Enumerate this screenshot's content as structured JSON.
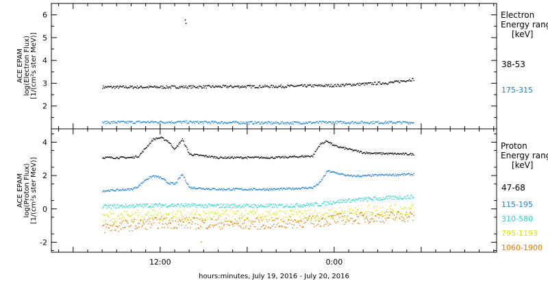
{
  "chart_data": [
    {
      "type": "scatter",
      "panel": "electron",
      "ylabel": [
        "ACE EPAM",
        "log(Electron Flux)",
        "[1/(cm²s ster MeV)]"
      ],
      "ylim": [
        1.0,
        6.5
      ],
      "yticks": [
        2,
        3,
        4,
        5,
        6
      ],
      "legend_title": [
        "Electron",
        "Energy ranges",
        "[keV]"
      ],
      "series": [
        {
          "name": "38-53",
          "color": "#000000",
          "segments": [
            {
              "t": [
                -16,
                -12,
                -8,
                -4,
                0,
                4,
                5.5
              ],
              "y": [
                2.85,
                2.85,
                2.87,
                2.88,
                2.92,
                3.05,
                3.2
              ]
            }
          ],
          "outliers": [
            {
              "t": -10.3,
              "y": 5.8
            },
            {
              "t": -10.25,
              "y": 5.65
            }
          ]
        },
        {
          "name": "175-315",
          "color": "#1c7fd6",
          "segments": [
            {
              "t": [
                -16,
                -12,
                -8,
                -4,
                0,
                4,
                5.5
              ],
              "y": [
                1.3,
                1.32,
                1.3,
                1.28,
                1.3,
                1.3,
                1.3
              ]
            }
          ],
          "outliers": []
        }
      ]
    },
    {
      "type": "scatter",
      "panel": "proton",
      "ylabel": [
        "ACE EPAM",
        "log(Proton Flux)",
        "[1/(cm²s ster MeV)]"
      ],
      "ylim": [
        -2.6,
        4.8
      ],
      "yticks": [
        -2,
        0,
        2,
        4
      ],
      "legend_title": [
        "Proton",
        "Energy ranges",
        "[keV]"
      ],
      "series": [
        {
          "name": "47-68",
          "color": "#000000",
          "segments": [
            {
              "t": [
                -16,
                -14,
                -13.5,
                -13,
                -12.5,
                -12,
                -11.5,
                -11,
                -10.5,
                -10,
                -8,
                -4,
                -1.5,
                -1.0,
                -0.5,
                0,
                1,
                2,
                3,
                5.5
              ],
              "y": [
                3.1,
                3.1,
                3.2,
                3.7,
                4.2,
                4.3,
                4.1,
                3.6,
                4.2,
                3.3,
                3.1,
                3.1,
                3.2,
                3.9,
                4.1,
                3.8,
                3.6,
                3.4,
                3.35,
                3.3
              ]
            }
          ],
          "outliers": []
        },
        {
          "name": "115-195",
          "color": "#1c7fd6",
          "segments": [
            {
              "t": [
                -16,
                -14,
                -13.5,
                -13,
                -12.5,
                -12,
                -11.5,
                -11,
                -10.5,
                -10,
                -8,
                -4,
                -1.5,
                -1.0,
                -0.5,
                0,
                1,
                2,
                3,
                5.5
              ],
              "y": [
                1.1,
                1.2,
                1.4,
                1.8,
                2.0,
                1.9,
                1.6,
                1.5,
                2.1,
                1.3,
                1.2,
                1.2,
                1.3,
                1.6,
                2.3,
                2.2,
                2.0,
                2.0,
                2.05,
                2.1
              ]
            }
          ],
          "outliers": []
        },
        {
          "name": "310-580",
          "color": "#1fd6d0",
          "segments": [
            {
              "t": [
                -16,
                -12,
                -8,
                -4,
                -1,
                0,
                2,
                5.5
              ],
              "y": [
                0.15,
                0.25,
                0.2,
                0.2,
                0.3,
                0.45,
                0.6,
                0.75
              ]
            }
          ],
          "outliers": []
        },
        {
          "name": "795-1193",
          "color": "#d8e600",
          "segments": [
            {
              "t": [
                -16,
                -12,
                -8,
                -4,
                -1,
                0,
                2,
                5.5
              ],
              "y": [
                -0.45,
                -0.35,
                -0.4,
                -0.4,
                -0.3,
                -0.2,
                -0.1,
                0.0
              ]
            }
          ],
          "outliers": []
        },
        {
          "name": "1060-1900",
          "color": "#e57a00",
          "segments": [
            {
              "t": [
                -16,
                -12,
                -8,
                -4,
                -1,
                0,
                2,
                5.5
              ],
              "y": [
                -1.1,
                -0.8,
                -0.85,
                -0.85,
                -0.7,
                -0.6,
                -0.5,
                -0.4
              ]
            }
          ],
          "outliers": [
            {
              "t": -9.2,
              "y": -1.95
            }
          ]
        }
      ]
    }
  ],
  "xaxis": {
    "xlabel": "hours:minutes, July 19, 2016 - July 20, 2016",
    "tick_labels": [
      {
        "t": -12,
        "label": "12:00"
      },
      {
        "t": 0,
        "label": "0:00"
      }
    ]
  }
}
